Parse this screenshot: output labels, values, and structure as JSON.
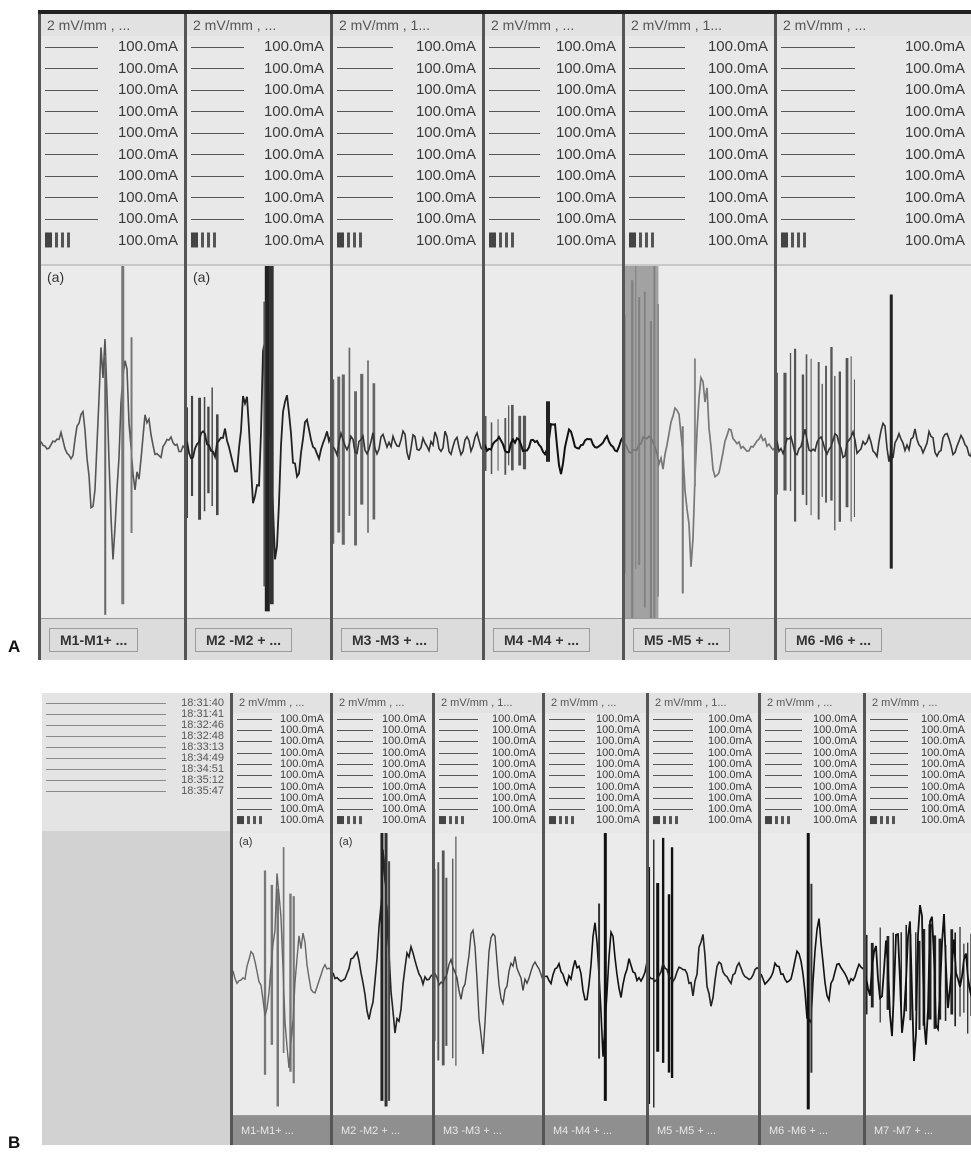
{
  "panel_labels": [
    "A",
    "B"
  ],
  "screenA": {
    "channels": [
      {
        "header": "2 mV/mm , ...",
        "tag": "(a)",
        "footer": "M1-M1+ ..."
      },
      {
        "header": "2 mV/mm , ...",
        "tag": "(a)",
        "footer": "M2 -M2 + ..."
      },
      {
        "header": "2 mV/mm , 1...",
        "tag": "",
        "footer": "M3 -M3 + ..."
      },
      {
        "header": "2 mV/mm , ...",
        "tag": "",
        "footer": "M4 -M4 + ..."
      },
      {
        "header": "2 mV/mm , 1...",
        "tag": "",
        "footer": "M5 -M5 + ..."
      },
      {
        "header": "2 mV/mm , ...",
        "tag": "",
        "footer": "M6 -M6 + ..."
      }
    ],
    "row_value": "100.0mA"
  },
  "screenB": {
    "timestamps": [
      "18:31:40",
      "18:31:41",
      "18:32:46",
      "18:32:48",
      "18:33:13",
      "18:34:49",
      "18:34:51",
      "18:35:12",
      "18:35:47"
    ],
    "channels": [
      {
        "header": "2 mV/mm , ...",
        "tag": "(a)",
        "footer": "M1-M1+ ..."
      },
      {
        "header": "2 mV/mm , ...",
        "tag": "(a)",
        "footer": "M2 -M2 + ..."
      },
      {
        "header": "2 mV/mm , 1...",
        "tag": "",
        "footer": "M3 -M3 + ..."
      },
      {
        "header": "2 mV/mm , ...",
        "tag": "",
        "footer": "M4 -M4 + ..."
      },
      {
        "header": "2 mV/mm , 1...",
        "tag": "",
        "footer": "M5 -M5 + ..."
      },
      {
        "header": "2 mV/mm , ...",
        "tag": "",
        "footer": "M6 -M6 + ..."
      },
      {
        "header": "2 mV/mm , ...",
        "tag": "",
        "footer": "M7 -M7 + ..."
      }
    ],
    "row_value": "100.0mA"
  }
}
